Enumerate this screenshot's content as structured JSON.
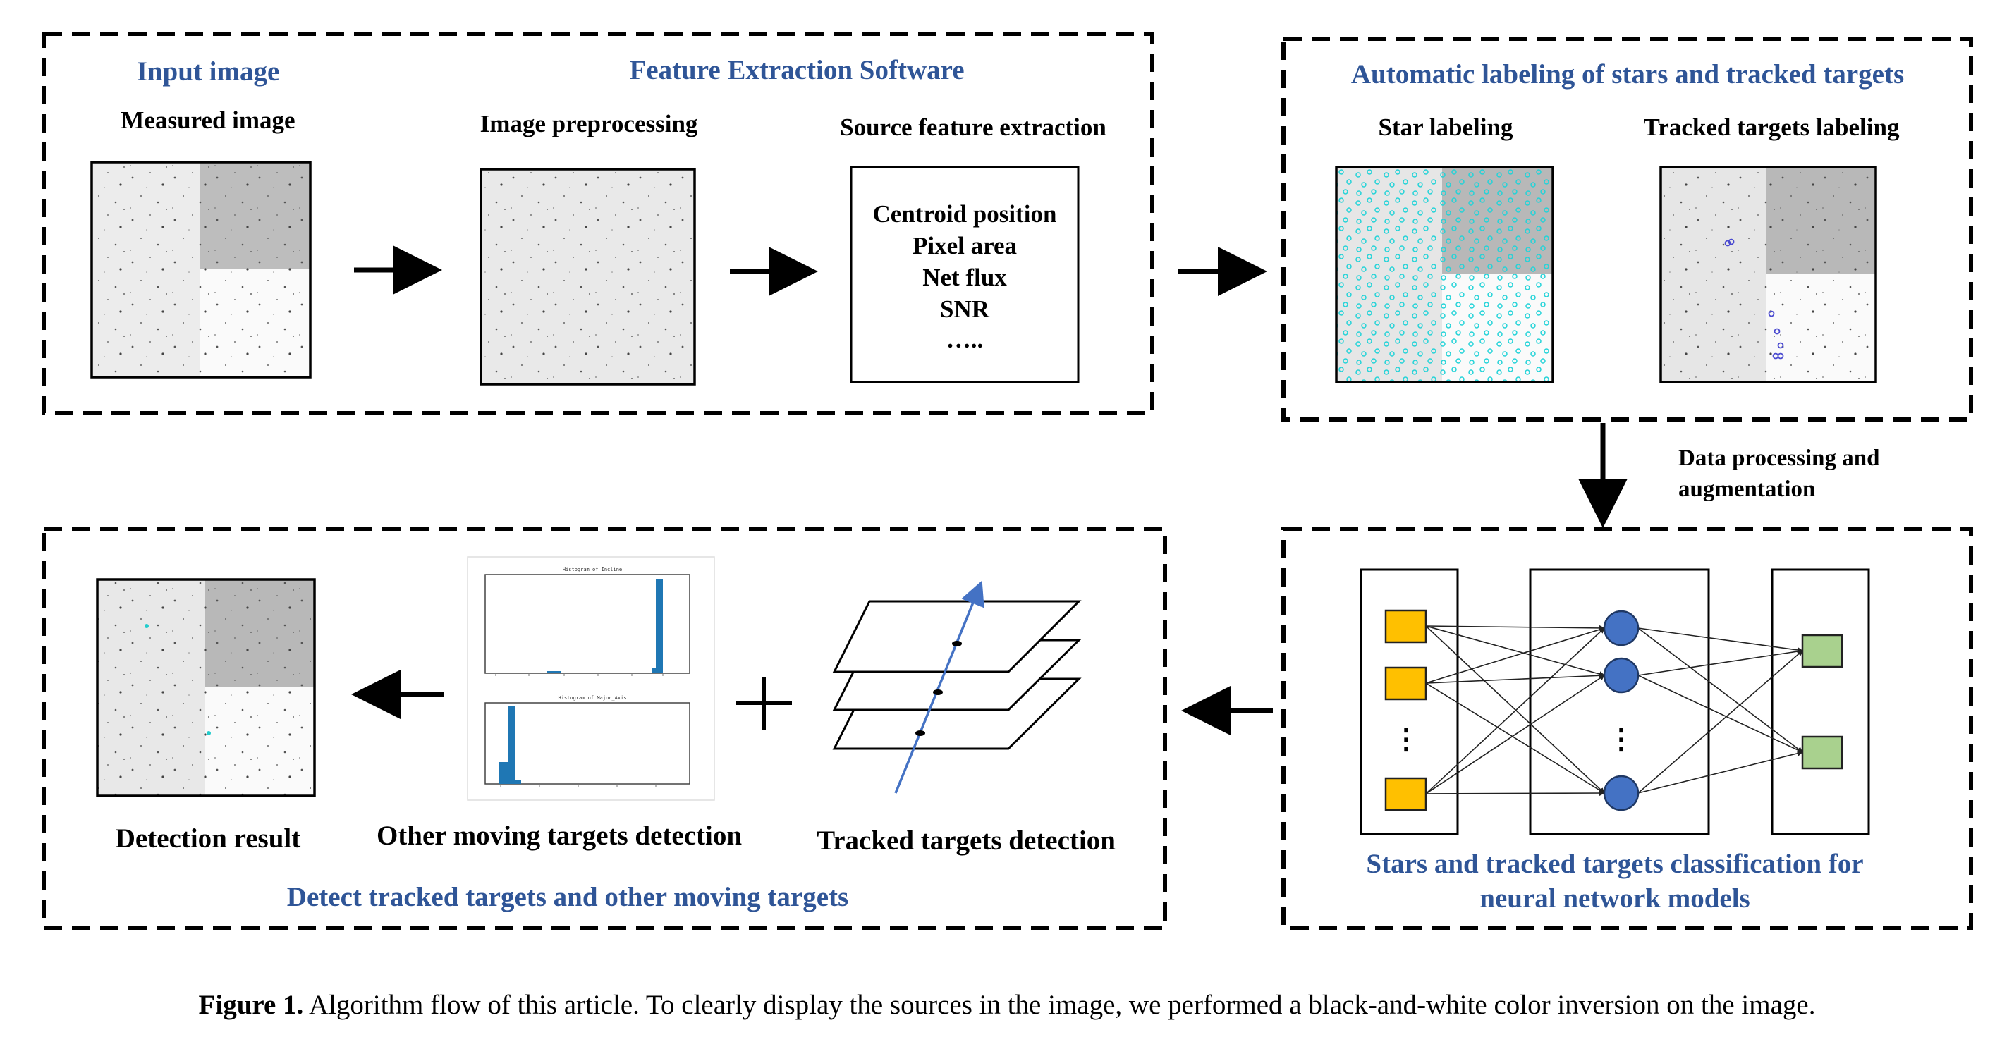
{
  "panels": {
    "feature": {
      "input_title": "Input image",
      "software_title": "Feature Extraction Software",
      "measured_label": "Measured image",
      "preproc_label": "Image preprocessing",
      "source_label": "Source feature extraction",
      "features": [
        "Centroid position",
        "Pixel area",
        "Net flux",
        "SNR",
        "….."
      ]
    },
    "labeling": {
      "title": "Automatic labeling of stars and tracked targets",
      "star_label": "Star labeling",
      "tracked_label": "Tracked targets labeling"
    },
    "data_processing": [
      "Data processing and",
      "augmentation"
    ],
    "classification": {
      "title_lines": [
        "Stars and tracked targets classification for",
        "neural network models"
      ],
      "input_dots": "⋮",
      "hidden_dots": "⋮"
    },
    "detection": {
      "title": "Detect tracked targets and other moving targets",
      "result_label": "Detection result",
      "other_label": "Other moving targets detection",
      "tracked_label": "Tracked targets detection",
      "hist_top_title": "Histogram of Incline",
      "hist_bottom_title": "Histogram of Major_Axis"
    }
  },
  "caption": {
    "bold": "Figure 1.",
    "text": " Algorithm flow of this article. To clearly display the sources in the image, we performed a black-and-white color inversion on the image."
  },
  "colors": {
    "title_blue": "#2f5597",
    "input_node": "#ffc000",
    "hidden_node": "#4472c4",
    "output_node": "#a9d18e",
    "hist_bar": "#1f77b4",
    "star_cyan": "#22d3d8",
    "track_arrow": "#4472c4"
  }
}
